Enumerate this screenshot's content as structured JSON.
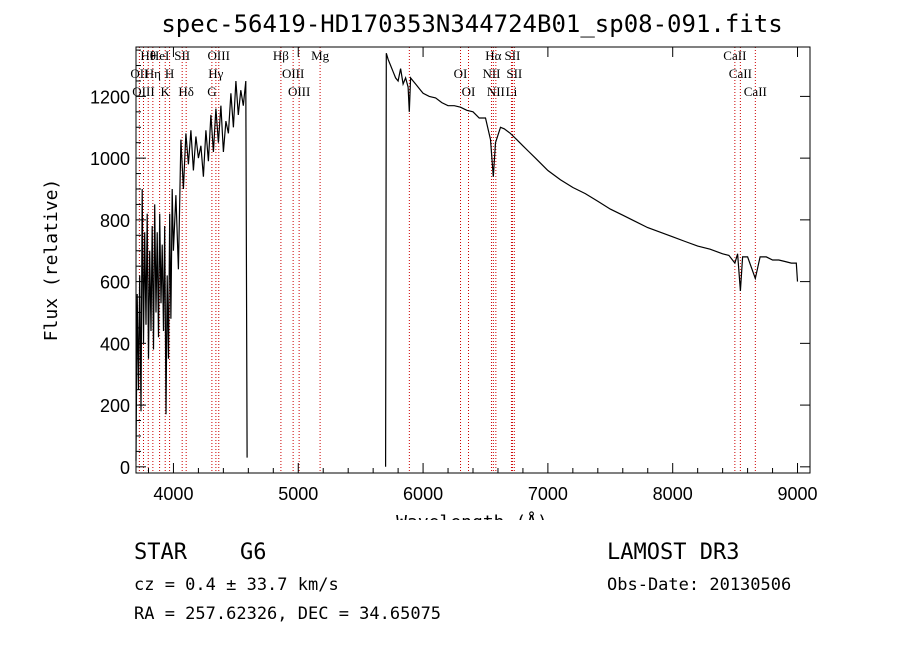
{
  "colors": {
    "line_marker": "#cc0000",
    "spectrum": "#000000",
    "axes": "#000000"
  },
  "chart_data": {
    "type": "line",
    "title": "spec-56419-HD170353N344724B01_sp08-091.fits",
    "xlabel": "Wavelength (Å)",
    "ylabel": "Flux (relative)",
    "xlim": [
      3700,
      9100
    ],
    "ylim": [
      -20,
      1360
    ],
    "xticks": [
      4000,
      5000,
      6000,
      7000,
      8000,
      9000
    ],
    "yticks": [
      0,
      200,
      400,
      600,
      800,
      1000,
      1200
    ],
    "gap": [
      4590,
      5700
    ],
    "series": [
      {
        "name": "spectrum",
        "x": [
          3700,
          3710,
          3720,
          3730,
          3740,
          3750,
          3760,
          3770,
          3780,
          3790,
          3800,
          3810,
          3820,
          3830,
          3840,
          3850,
          3860,
          3870,
          3880,
          3890,
          3900,
          3910,
          3920,
          3930,
          3940,
          3950,
          3960,
          3970,
          3980,
          3990,
          4000,
          4020,
          4040,
          4060,
          4080,
          4100,
          4120,
          4140,
          4160,
          4180,
          4200,
          4220,
          4240,
          4260,
          4280,
          4300,
          4320,
          4340,
          4360,
          4380,
          4400,
          4420,
          4440,
          4460,
          4480,
          4500,
          4520,
          4540,
          4560,
          4580,
          4590,
          5700,
          5705,
          5720,
          5740,
          5760,
          5780,
          5800,
          5820,
          5840,
          5860,
          5880,
          5890,
          5900,
          5920,
          5940,
          5960,
          5980,
          6000,
          6050,
          6100,
          6150,
          6200,
          6250,
          6300,
          6350,
          6400,
          6450,
          6500,
          6540,
          6563,
          6580,
          6620,
          6650,
          6700,
          6750,
          6800,
          6850,
          6900,
          7000,
          7100,
          7200,
          7300,
          7400,
          7500,
          7600,
          7700,
          7800,
          7900,
          8000,
          8100,
          8200,
          8300,
          8400,
          8450,
          8498,
          8520,
          8542,
          8560,
          8600,
          8662,
          8700,
          8750,
          8800,
          8850,
          8900,
          8950,
          8990,
          9000
        ],
        "y": [
          20,
          560,
          250,
          620,
          180,
          900,
          400,
          760,
          460,
          820,
          350,
          700,
          440,
          780,
          380,
          850,
          500,
          760,
          420,
          820,
          530,
          720,
          440,
          780,
          170,
          620,
          350,
          820,
          480,
          900,
          700,
          880,
          640,
          1060,
          900,
          1080,
          980,
          1090,
          960,
          1070,
          1000,
          1040,
          940,
          1090,
          990,
          1140,
          1020,
          1160,
          1050,
          1170,
          1020,
          1120,
          1080,
          1210,
          1100,
          1250,
          1140,
          1220,
          1170,
          1250,
          30,
          0,
          1340,
          1320,
          1300,
          1280,
          1260,
          1250,
          1290,
          1240,
          1260,
          1230,
          1150,
          1260,
          1250,
          1240,
          1230,
          1220,
          1210,
          1200,
          1195,
          1180,
          1170,
          1170,
          1165,
          1155,
          1150,
          1130,
          1130,
          1060,
          940,
          1050,
          1100,
          1095,
          1080,
          1060,
          1040,
          1020,
          1000,
          960,
          930,
          905,
          885,
          860,
          835,
          815,
          795,
          775,
          760,
          745,
          730,
          715,
          705,
          690,
          685,
          660,
          690,
          570,
          680,
          680,
          610,
          680,
          680,
          670,
          670,
          665,
          660,
          660,
          600
        ]
      }
    ],
    "line_markers": [
      {
        "label": "Hθ",
        "x": 3798
      },
      {
        "label": "OII",
        "x": 3727
      },
      {
        "label": "OIII",
        "x": 3760
      },
      {
        "label": "HeI",
        "x": 3889
      },
      {
        "label": "Hη",
        "x": 3835
      },
      {
        "label": "K",
        "x": 3934
      },
      {
        "label": "SII",
        "x": 4070
      },
      {
        "label": "H",
        "x": 3969
      },
      {
        "label": "Hδ",
        "x": 4102
      },
      {
        "label": "OIII",
        "x": 4363
      },
      {
        "label": "Hγ",
        "x": 4340
      },
      {
        "label": "G",
        "x": 4308
      },
      {
        "label": "Hβ",
        "x": 4861
      },
      {
        "label": "OIII",
        "x": 4959
      },
      {
        "label": "OIII",
        "x": 5007
      },
      {
        "label": "Mg",
        "x": 5175
      },
      {
        "label": "OI",
        "x": 6300
      },
      {
        "label": "OI",
        "x": 6364
      },
      {
        "label": "Hα",
        "x": 6563
      },
      {
        "label": "NII",
        "x": 6548
      },
      {
        "label": "NII",
        "x": 6583
      },
      {
        "label": "SII",
        "x": 6716
      },
      {
        "label": "SII",
        "x": 6731
      },
      {
        "label": "Li",
        "x": 6708
      },
      {
        "label": "CaII",
        "x": 8498
      },
      {
        "label": "CaII",
        "x": 8542
      },
      {
        "label": "CaII",
        "x": 8662
      },
      {
        "label": "",
        "x": 5890
      }
    ]
  },
  "info": {
    "class_label": "STAR",
    "subclass": "G6",
    "survey": "LAMOST DR3",
    "cz": "cz = 0.4 ± 33.7 km/s",
    "obs_date": "Obs-Date: 20130506",
    "coords": "RA = 257.62326, DEC =  34.65075"
  }
}
